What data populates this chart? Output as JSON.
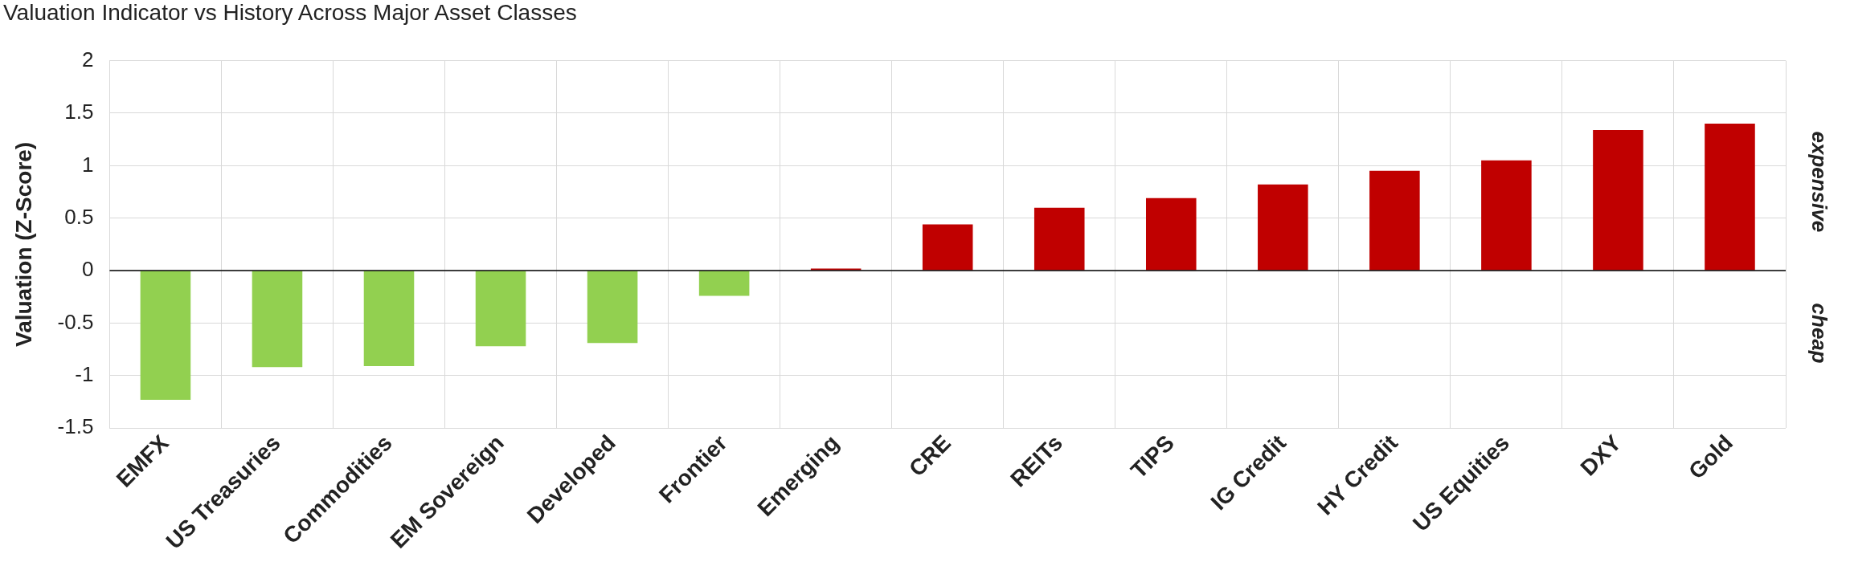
{
  "chart_data": {
    "type": "bar",
    "title": "Valuation Indicator vs History Across Major Asset Classes",
    "ylabel": "Valuation (Z-Score)",
    "categories": [
      "EMFX",
      "US Treasuries",
      "Commodities",
      "EM Sovereign",
      "Developed",
      "Frontier",
      "Emerging",
      "CRE",
      "REITs",
      "TIPS",
      "IG Credit",
      "HY Credit",
      "US Equities",
      "DXY",
      "Gold"
    ],
    "values": [
      -1.23,
      -0.92,
      -0.91,
      -0.72,
      -0.69,
      -0.24,
      0.02,
      0.44,
      0.6,
      0.69,
      0.82,
      0.95,
      1.05,
      1.34,
      1.4
    ],
    "colors": [
      "#92d050",
      "#92d050",
      "#92d050",
      "#92d050",
      "#92d050",
      "#92d050",
      "#c00000",
      "#c00000",
      "#c00000",
      "#c00000",
      "#c00000",
      "#c00000",
      "#c00000",
      "#c00000",
      "#c00000"
    ],
    "ylim": [
      -1.5,
      2
    ],
    "yticks": [
      -1.5,
      -1,
      -0.5,
      0,
      0.5,
      1,
      1.5,
      2
    ],
    "grid": true,
    "annotations": [
      "expensive",
      "cheap"
    ]
  }
}
